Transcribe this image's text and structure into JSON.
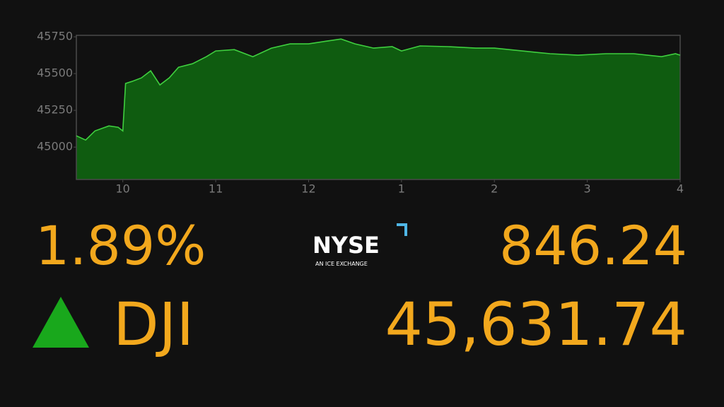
{
  "chart_data": {
    "type": "area",
    "x": [
      9.5,
      9.6,
      9.7,
      9.85,
      9.95,
      10.0,
      10.03,
      10.1,
      10.2,
      10.3,
      10.4,
      10.5,
      10.6,
      10.75,
      10.9,
      11.0,
      11.2,
      11.4,
      11.6,
      11.8,
      12.0,
      12.2,
      12.35,
      12.5,
      12.7,
      12.9,
      13.0,
      13.2,
      13.5,
      13.8,
      14.0,
      14.3,
      14.6,
      14.9,
      15.2,
      15.5,
      15.8,
      15.95,
      16.0
    ],
    "values": [
      45077,
      45048,
      45110,
      45144,
      45135,
      45110,
      45433,
      45447,
      45471,
      45519,
      45423,
      45471,
      45543,
      45567,
      45615,
      45654,
      45663,
      45615,
      45673,
      45702,
      45702,
      45721,
      45735,
      45702,
      45673,
      45683,
      45654,
      45688,
      45683,
      45673,
      45673,
      45654,
      45635,
      45625,
      45635,
      45635,
      45615,
      45635,
      45625
    ],
    "xlim": [
      9.5,
      16
    ],
    "xticks": [
      10,
      11,
      12,
      {
        "value": 13,
        "label": "1"
      },
      {
        "value": 14,
        "label": "2"
      },
      {
        "value": 15,
        "label": "3"
      },
      {
        "value": 16,
        "label": "4"
      }
    ],
    "ylim": [
      44780,
      45760
    ],
    "yticks": [
      45000,
      45250,
      45500,
      45750
    ],
    "line_color": "#3fcf3f",
    "fill_color": "#0f5c10"
  },
  "ticker": {
    "change_percent": "1.89%",
    "symbol": "DJI",
    "change_points": "846.24",
    "level": "45,631.74",
    "direction_color": "#19a81c"
  },
  "logo": {
    "name": "NYSE",
    "tagline": "AN ICE EXCHANGE"
  }
}
